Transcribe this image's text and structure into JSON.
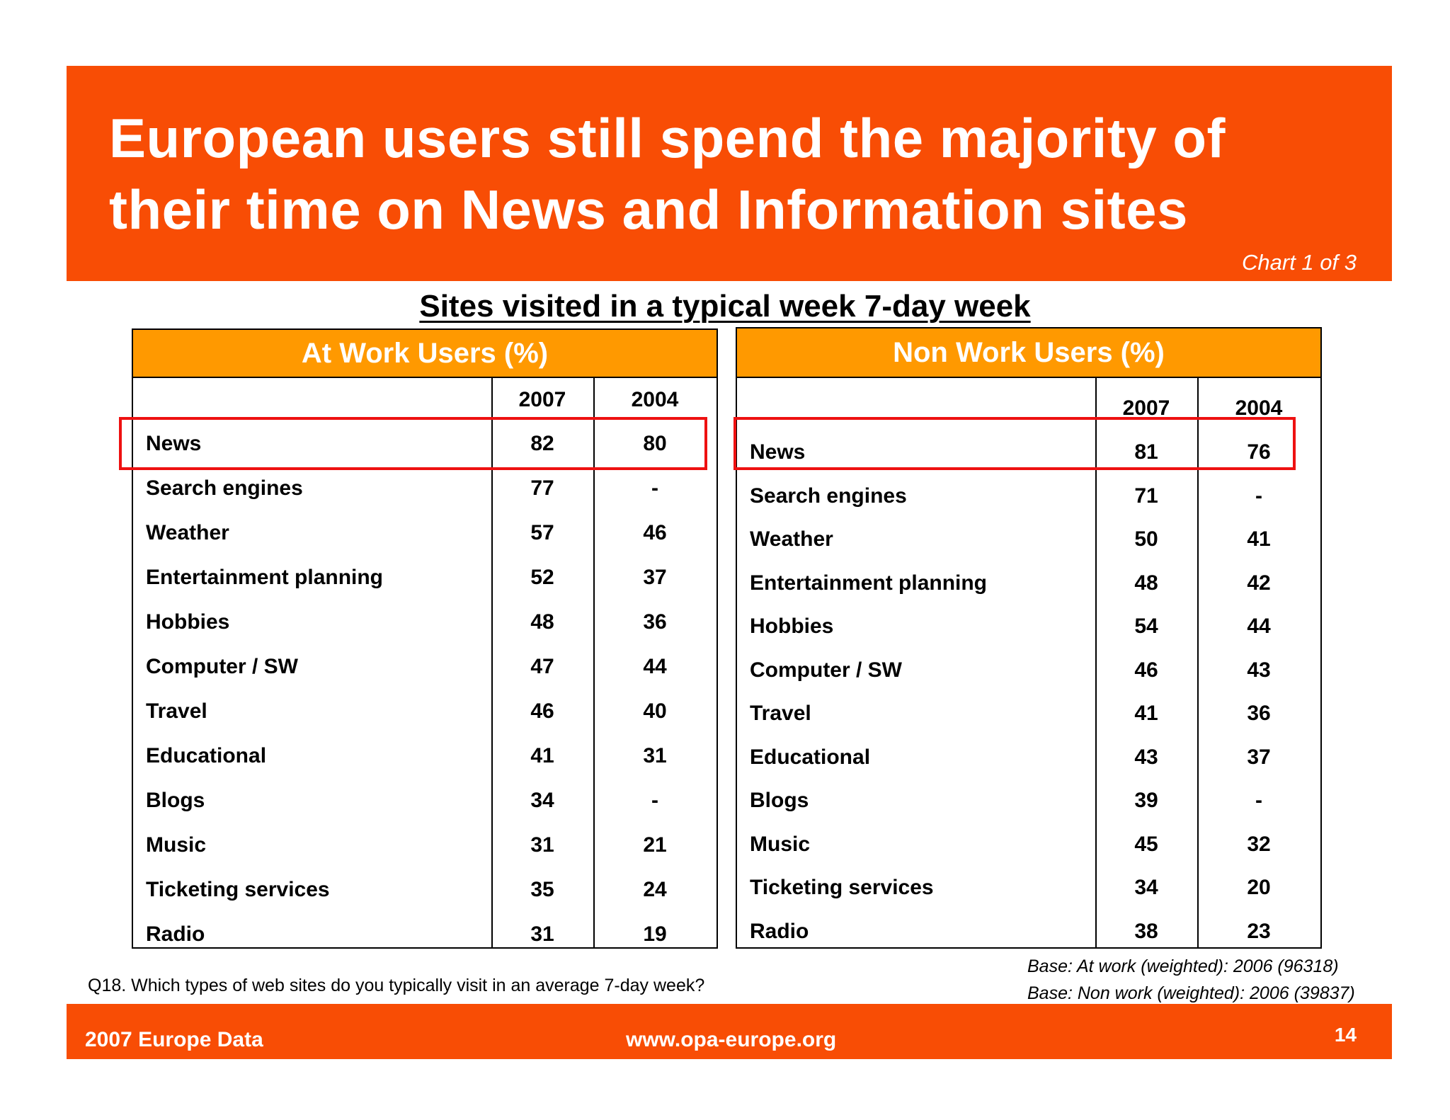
{
  "header": {
    "title_line1": "European users still spend the majority of",
    "title_line2": "their time on News and Information sites",
    "chart_count": "Chart 1 of 3"
  },
  "subtitle": "Sites visited in a typical week 7-day week",
  "tables": [
    {
      "title": "At Work Users (%)",
      "col_2007": "2007",
      "col_2004": "2004",
      "rows": [
        {
          "site": "News",
          "y2007": "82",
          "y2004": "80"
        },
        {
          "site": "Search engines",
          "y2007": "77",
          "y2004": "-"
        },
        {
          "site": "Weather",
          "y2007": "57",
          "y2004": "46"
        },
        {
          "site": "Entertainment planning",
          "y2007": "52",
          "y2004": "37"
        },
        {
          "site": "Hobbies",
          "y2007": "48",
          "y2004": "36"
        },
        {
          "site": "Computer / SW",
          "y2007": "47",
          "y2004": "44"
        },
        {
          "site": "Travel",
          "y2007": "46",
          "y2004": "40"
        },
        {
          "site": "Educational",
          "y2007": "41",
          "y2004": "31"
        },
        {
          "site": "Blogs",
          "y2007": "34",
          "y2004": "-"
        },
        {
          "site": "Music",
          "y2007": "31",
          "y2004": "21"
        },
        {
          "site": "Ticketing services",
          "y2007": "35",
          "y2004": "24"
        },
        {
          "site": "Radio",
          "y2007": "31",
          "y2004": "19"
        }
      ]
    },
    {
      "title": "Non Work Users (%)",
      "col_2007": "2007",
      "col_2004": "2004",
      "rows": [
        {
          "site": "News",
          "y2007": "81",
          "y2004": "76"
        },
        {
          "site": "Search engines",
          "y2007": "71",
          "y2004": "-"
        },
        {
          "site": "Weather",
          "y2007": "50",
          "y2004": "41"
        },
        {
          "site": "Entertainment planning",
          "y2007": "48",
          "y2004": "42"
        },
        {
          "site": "Hobbies",
          "y2007": "54",
          "y2004": "44"
        },
        {
          "site": "Computer / SW",
          "y2007": "46",
          "y2004": "43"
        },
        {
          "site": "Travel",
          "y2007": "41",
          "y2004": "36"
        },
        {
          "site": "Educational",
          "y2007": "43",
          "y2004": "37"
        },
        {
          "site": "Blogs",
          "y2007": "39",
          "y2004": "-"
        },
        {
          "site": "Music",
          "y2007": "45",
          "y2004": "32"
        },
        {
          "site": "Ticketing services",
          "y2007": "34",
          "y2004": "20"
        },
        {
          "site": "Radio",
          "y2007": "38",
          "y2004": "23"
        }
      ]
    }
  ],
  "notes": {
    "question": "Q18. Which types of web sites do you typically visit in an average 7-day week?",
    "base_work": "Base: At work (weighted): 2006  (96318)",
    "base_nonwork": "Base: Non work (weighted): 2006 (39837)"
  },
  "footer": {
    "left": "2007 Europe Data",
    "center": "www.opa-europe.org",
    "page": "14"
  },
  "colors": {
    "brand_orange": "#f84d05",
    "table_header": "#ff9900",
    "highlight": "#ee1111"
  }
}
